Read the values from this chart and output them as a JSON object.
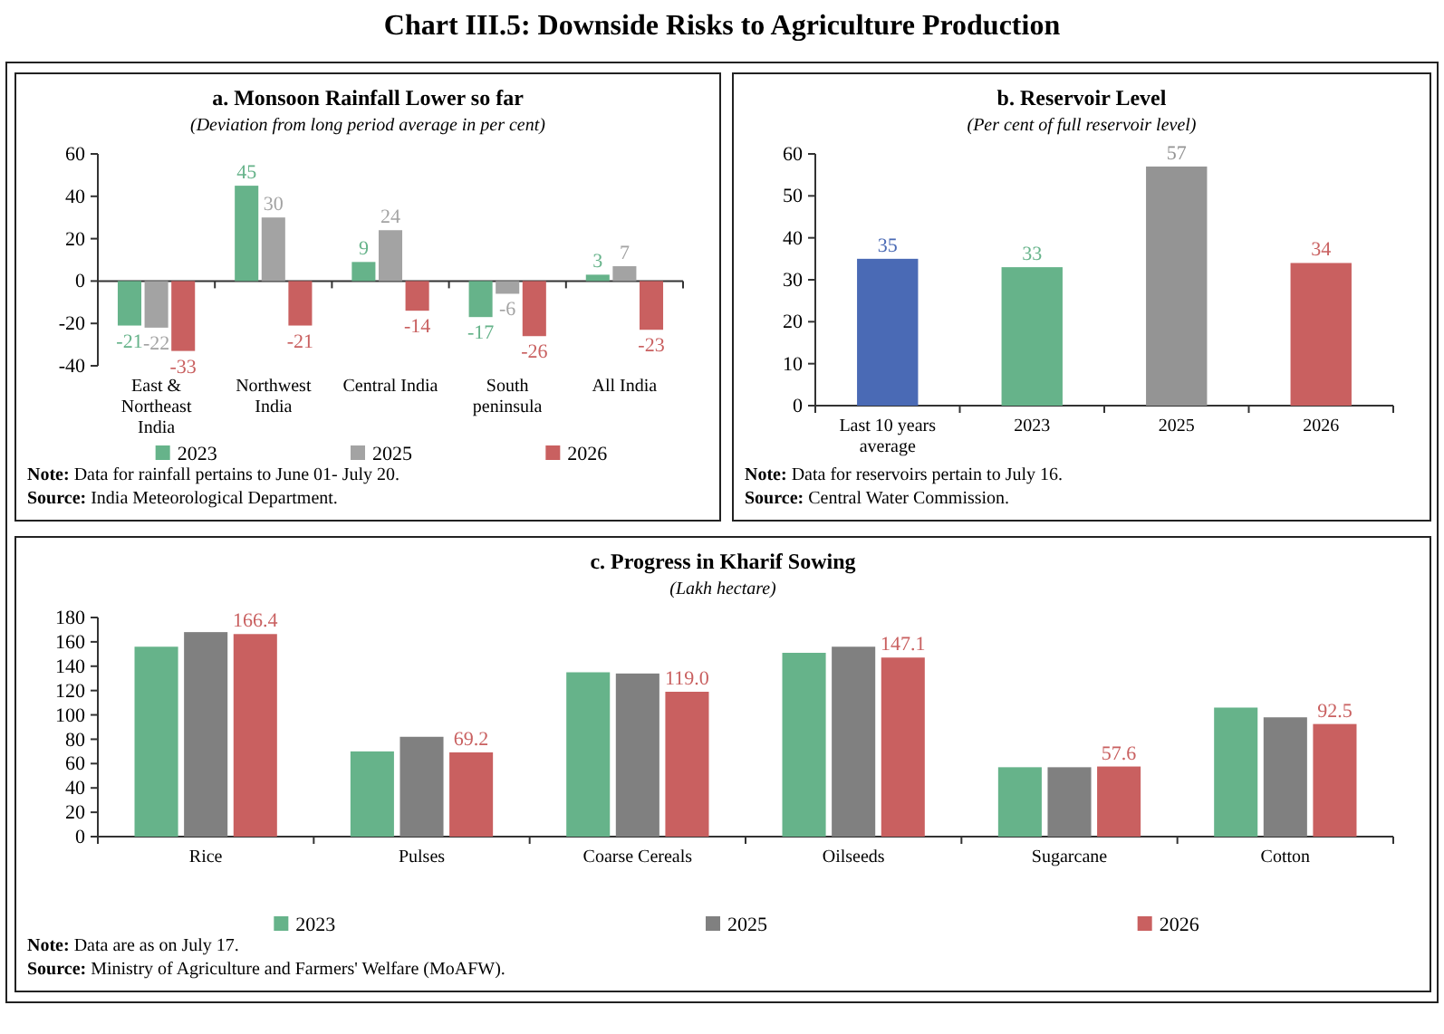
{
  "chart_data": [
    {
      "type": "bar",
      "title": "a. Monsoon Rainfall Lower so far",
      "subtitle": "(Deviation from long period average in per cent)",
      "categories": [
        "East & Northeast India",
        "Northwest India",
        "Central India",
        "South peninsula",
        "All India"
      ],
      "series": [
        {
          "name": "2023",
          "color": "#66b38a",
          "values": [
            -21,
            45,
            9,
            -17,
            3
          ]
        },
        {
          "name": "2025",
          "color": "#a3a3a3",
          "values": [
            -22,
            30,
            24,
            -6,
            7
          ]
        },
        {
          "name": "2026",
          "color": "#c96060",
          "values": [
            -33,
            -21,
            -14,
            -26,
            -23
          ]
        }
      ],
      "ylim": [
        -40,
        60
      ],
      "yticks": [
        -40,
        -20,
        0,
        20,
        40,
        60
      ],
      "data_labels": true,
      "legend": "bottom",
      "annotations": [
        "Chart III.5: Downside Risks to Agriculture Production",
        "Note: Data for rainfall pertains to June 01- July 20.",
        "Source: India Meteorological Department."
      ]
    },
    {
      "type": "bar",
      "title": "b. Reservoir Level",
      "subtitle": "(Per cent of full reservoir level)",
      "categories": [
        "Last 10 years average",
        "2023",
        "2025",
        "2026"
      ],
      "values": [
        35,
        33,
        57,
        34
      ],
      "colors": [
        "#4a6ab5",
        "#66b38a",
        "#949494",
        "#c96060"
      ],
      "ylim": [
        0,
        60
      ],
      "yticks": [
        0,
        10,
        20,
        30,
        40,
        50,
        60
      ],
      "data_labels": true,
      "legend": false,
      "annotations": [
        "Note: Data for reservoirs pertain to July 16.",
        "Source: Central Water Commission."
      ]
    },
    {
      "type": "bar",
      "title": "c. Progress in Kharif Sowing",
      "subtitle": "(Lakh hectare)",
      "categories": [
        "Rice",
        "Pulses",
        "Coarse Cereals",
        "Oilseeds",
        "Sugarcane",
        "Cotton"
      ],
      "series": [
        {
          "name": "2023",
          "color": "#66b38a",
          "values": [
            156,
            70,
            135,
            151,
            57,
            106
          ]
        },
        {
          "name": "2025",
          "color": "#808080",
          "values": [
            168,
            82,
            134,
            156,
            57,
            98
          ]
        },
        {
          "name": "2026",
          "color": "#c96060",
          "values": [
            166.4,
            69.2,
            119.0,
            147.1,
            57.6,
            92.5
          ],
          "value_labels": [
            "166.4",
            "69.2",
            "119.0",
            "147.1",
            "57.6",
            "92.5"
          ]
        }
      ],
      "ylim": [
        0,
        180
      ],
      "yticks": [
        0,
        20,
        40,
        60,
        80,
        100,
        120,
        140,
        160,
        180
      ],
      "legend": "bottom",
      "annotations": [
        "Note: Data are as on July 17.",
        "Source: Ministry of Agriculture and Farmers' Welfare (MoAFW)."
      ]
    }
  ]
}
